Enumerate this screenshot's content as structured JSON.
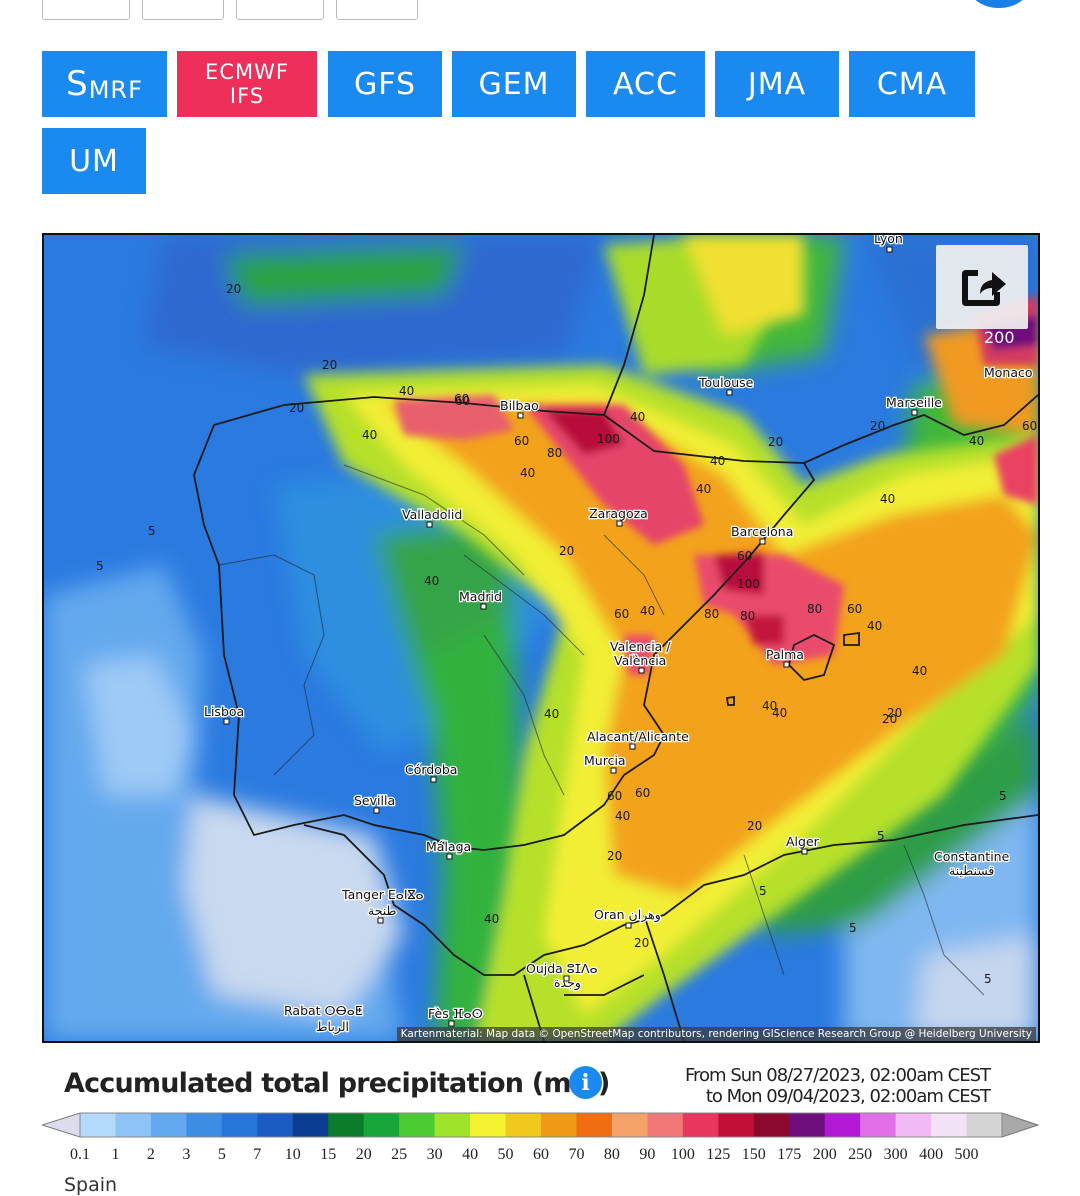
{
  "models": [
    {
      "label": "S",
      "sub": "MRF",
      "active": false
    },
    {
      "label": "ECMWF",
      "sub": "IFS",
      "active": true
    },
    {
      "label": "GFS",
      "active": false
    },
    {
      "label": "GEM",
      "active": false
    },
    {
      "label": "ACC",
      "active": false
    },
    {
      "label": "JMA",
      "active": false
    },
    {
      "label": "CMA",
      "active": false
    },
    {
      "label": "UM",
      "active": false
    }
  ],
  "map": {
    "attribution": "Kartenmaterial: Map data © OpenStreetMap contributors, rendering GIScience Research Group @ Heidelberg University",
    "cities": {
      "lyon": "Lyon",
      "toulouse": "Toulouse",
      "marseille": "Marseille",
      "monaco": "Monaco",
      "bilbao": "Bilbao",
      "zaragoza": "Zaragoza",
      "barcelona": "Barcelona",
      "valladolid": "Valladolid",
      "madrid": "Madrid",
      "valencia": "Valencia /",
      "valencia2": "València",
      "palma": "Palma",
      "lisboa": "Lisboa",
      "alicante": "Alacant/Alicante",
      "murcia": "Murcia",
      "cordoba": "Córdoba",
      "sevilla": "Sevilla",
      "malaga": "Málaga",
      "alger": "Alger",
      "constantine": "Constantine",
      "constantine_ar": "قسنطينة",
      "tanger": "Tanger ⴹⴰⵏⴵⴰ",
      "tanger_ar": "طنجة",
      "oran": "Oran وهران",
      "oujda": "Oujda ⵓⵊⴷⴰ",
      "oujda_ar": "وجدة",
      "rabat": "Rabat ⵔⴱⴰⵟ",
      "rabat_ar": "الرباط",
      "fes": "Fès ⴼⴰⵙ"
    },
    "contours": [
      "20",
      "20",
      "20",
      "40",
      "40",
      "60",
      "60",
      "80",
      "100",
      "40",
      "40",
      "40",
      "20",
      "40",
      "40",
      "5",
      "5",
      "20",
      "40",
      "40",
      "60",
      "60",
      "40",
      "40",
      "40",
      "20",
      "40",
      "60",
      "40",
      "60",
      "80",
      "100",
      "80",
      "80",
      "60",
      "40",
      "20",
      "5",
      "5",
      "5",
      "5",
      "5",
      "60",
      "20",
      "20",
      "40",
      "20",
      "20",
      "200",
      "60",
      "40"
    ]
  },
  "legend": {
    "title": "Accumulated total precipitation (mm)",
    "info_icon": "info-icon",
    "from": "From Sun 08/27/2023, 02:00am CEST",
    "to": "to Mon 09/04/2023, 02:00am CEST",
    "bins": [
      "0.1",
      "1",
      "2",
      "3",
      "5",
      "7",
      "10",
      "15",
      "20",
      "25",
      "30",
      "40",
      "50",
      "60",
      "70",
      "80",
      "90",
      "100",
      "125",
      "150",
      "175",
      "200",
      "250",
      "300",
      "400",
      "500"
    ],
    "colors": [
      "#dcdcec",
      "#b3d9fb",
      "#8ec3f5",
      "#62a8ef",
      "#3d8de4",
      "#2576d8",
      "#1a5cc2",
      "#0a3c92",
      "#0b7c2a",
      "#18a63a",
      "#4ccc32",
      "#9fe32a",
      "#f4f230",
      "#f0c81e",
      "#ef9a16",
      "#f06e12",
      "#f5a26a",
      "#f07878",
      "#e8365f",
      "#c0103a",
      "#8b0a2e",
      "#6e0d7c",
      "#b31ad6",
      "#e26ee8",
      "#f3b8f6",
      "#f2e2f6",
      "#d4d4d4",
      "#a9a9a9"
    ],
    "region": "Spain"
  }
}
